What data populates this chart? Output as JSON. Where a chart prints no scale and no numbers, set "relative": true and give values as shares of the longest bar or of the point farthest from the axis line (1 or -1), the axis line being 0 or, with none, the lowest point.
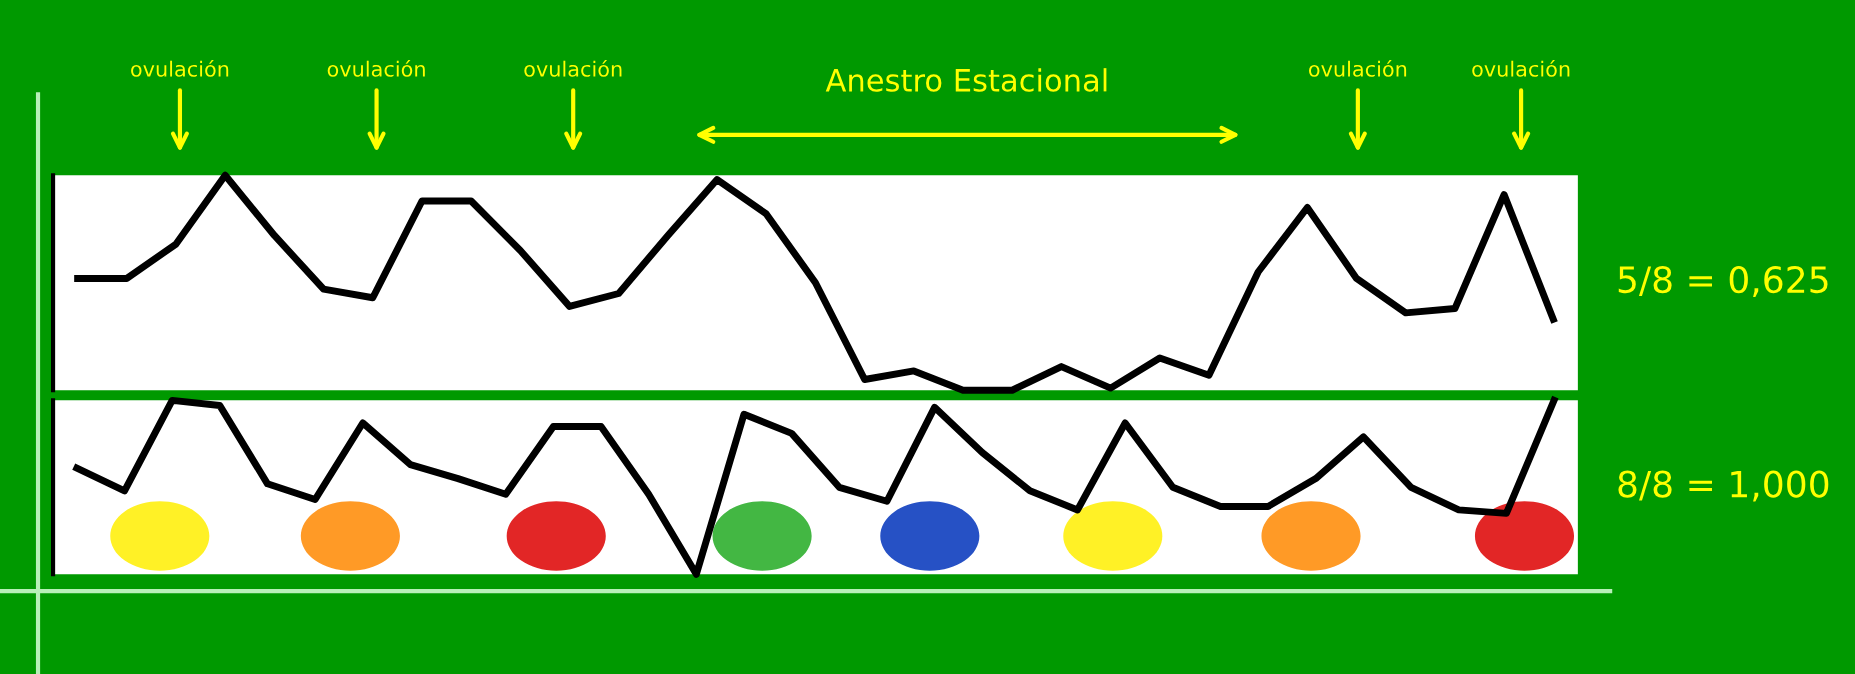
{
  "chart_data": [
    {
      "type": "line",
      "relative": true,
      "marker": "none",
      "line_style": "solid",
      "categories": [
        null,
        null,
        null,
        null,
        null,
        null,
        null,
        null,
        null,
        null,
        null,
        null,
        null,
        null,
        null,
        null,
        null,
        null,
        null,
        null,
        null,
        null,
        null,
        null,
        null,
        null,
        null,
        null,
        null,
        null,
        null
      ],
      "series": [
        {
          "color": "#000000",
          "values": [
            0.52,
            0.52,
            0.68,
            1.0,
            0.72,
            0.47,
            0.43,
            0.88,
            0.88,
            0.65,
            0.39,
            0.45,
            0.72,
            0.98,
            0.82,
            0.5,
            0.05,
            0.09,
            0.0,
            0.0,
            0.11,
            0.01,
            0.15,
            0.07,
            0.55,
            0.85,
            0.52,
            0.36,
            0.38,
            0.91,
            0.33
          ]
        }
      ],
      "annotations": [
        "ovulación",
        "ovulación",
        "ovulación",
        "ovulación",
        "ovulación",
        "Anestro Estacional",
        "5/8 = 0,625"
      ]
    },
    {
      "type": "line",
      "relative": true,
      "marker": "none",
      "line_style": "solid",
      "categories": [
        null,
        null,
        null,
        null,
        null,
        null,
        null,
        null,
        null,
        null,
        null,
        null,
        null,
        null,
        null,
        null,
        null,
        null,
        null,
        null,
        null,
        null,
        null,
        null,
        null,
        null,
        null,
        null,
        null,
        null,
        null,
        null
      ],
      "series": [
        {
          "color": "#000000",
          "values": [
            0.61,
            0.48,
            1.0,
            0.97,
            0.52,
            0.43,
            0.87,
            0.63,
            0.55,
            0.46,
            0.85,
            0.85,
            0.46,
            0.0,
            0.92,
            0.81,
            0.5,
            0.42,
            0.96,
            0.7,
            0.48,
            0.37,
            0.87,
            0.5,
            0.39,
            0.39,
            0.55,
            0.79,
            0.5,
            0.37,
            0.35,
            1.0
          ]
        }
      ],
      "annotations": [
        "8/8 = 1,000"
      ]
    }
  ]
}
